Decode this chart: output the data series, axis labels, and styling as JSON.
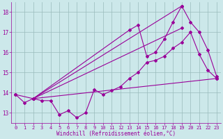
{
  "xlabel": "Windchill (Refroidissement éolien,°C)",
  "xlim": [
    -0.5,
    23.5
  ],
  "ylim": [
    12.5,
    18.5
  ],
  "xticks": [
    0,
    1,
    2,
    3,
    4,
    5,
    6,
    7,
    8,
    9,
    10,
    11,
    12,
    13,
    14,
    15,
    16,
    17,
    18,
    19,
    20,
    21,
    22,
    23
  ],
  "yticks": [
    13,
    14,
    15,
    16,
    17,
    18
  ],
  "bg_color": "#cce8ea",
  "line_color": "#990099",
  "grid_color": "#99bbbb",
  "lines": [
    {
      "x": [
        0,
        1,
        2,
        3,
        4,
        5,
        6,
        7,
        8,
        9,
        10,
        11,
        12,
        13,
        14,
        15,
        16,
        17,
        18,
        19,
        20,
        21,
        22,
        23
      ],
      "y": [
        13.9,
        13.5,
        13.7,
        13.6,
        13.6,
        12.9,
        13.1,
        12.75,
        13.0,
        14.15,
        13.9,
        14.1,
        14.3,
        14.7,
        15.0,
        15.5,
        15.6,
        15.8,
        16.2,
        16.5,
        17.0,
        15.9,
        15.1,
        14.7
      ]
    },
    {
      "x": [
        0,
        2,
        23
      ],
      "y": [
        13.9,
        13.7,
        14.7
      ]
    },
    {
      "x": [
        2,
        19
      ],
      "y": [
        13.7,
        18.3
      ]
    },
    {
      "x": [
        2,
        13,
        14,
        15,
        16,
        17,
        18,
        19,
        20,
        21,
        22,
        23
      ],
      "y": [
        13.7,
        17.1,
        17.35,
        15.8,
        16.0,
        16.65,
        17.5,
        18.3,
        17.5,
        17.0,
        16.1,
        14.8
      ]
    },
    {
      "x": [
        2,
        19
      ],
      "y": [
        13.7,
        17.2
      ]
    }
  ]
}
